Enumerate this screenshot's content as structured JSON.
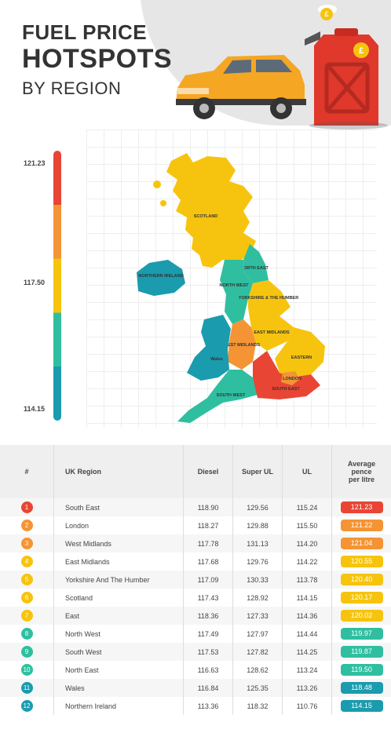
{
  "header": {
    "title_line1": "FUEL PRICE",
    "title_line2": "HOTSPOTS",
    "title_line3": "BY REGION"
  },
  "legend": {
    "max": "121.23",
    "mid": "117.50",
    "min": "114.15",
    "colors": [
      "#e84535",
      "#f49434",
      "#f6c40f",
      "#2fbfa0",
      "#1b9bae"
    ]
  },
  "map_labels": {
    "scotland": "SCOTLAND",
    "northern_ireland": "NORTHERN IRELAND",
    "north_east": "NORTH EAST",
    "north_west": "NORTH WEST",
    "yorkshire": "YORKSHIRE & THE HUMBER",
    "east_midlands": "EAST MIDLANDS",
    "west_midlands": "WEST MIDLANDS",
    "wales": "Wales",
    "eastern": "EASTERN",
    "london": "LONDON",
    "south_east": "SOUTH EAST",
    "south_west": "SOUTH WEST"
  },
  "hero_icons": {
    "car": "car-icon",
    "can": "fuel-can-icon",
    "coin": "pound-coin-icon",
    "pound_symbol": "£"
  },
  "table": {
    "headers": {
      "rank": "#",
      "region": "UK Region",
      "diesel": "Diesel",
      "super_ul": "Super UL",
      "ul": "UL",
      "average": "Average pence per litre"
    },
    "rows": [
      {
        "rank": "1",
        "region": "South East",
        "diesel": "118.90",
        "super_ul": "129.56",
        "ul": "115.24",
        "average": "121.23",
        "color": "#e84535"
      },
      {
        "rank": "2",
        "region": "London",
        "diesel": "118.27",
        "super_ul": "129.88",
        "ul": "115.50",
        "average": "121.22",
        "color": "#f49434"
      },
      {
        "rank": "3",
        "region": "West Midlands",
        "diesel": "117.78",
        "super_ul": "131.13",
        "ul": "114.20",
        "average": "121.04",
        "color": "#f49434"
      },
      {
        "rank": "4",
        "region": "East Midlands",
        "diesel": "117.68",
        "super_ul": "129.76",
        "ul": "114.22",
        "average": "120.55",
        "color": "#f6c40f"
      },
      {
        "rank": "5",
        "region": "Yorkshire And The Humber",
        "diesel": "117.09",
        "super_ul": "130.33",
        "ul": "113.78",
        "average": "120.40",
        "color": "#f6c40f"
      },
      {
        "rank": "6",
        "region": "Scotland",
        "diesel": "117.43",
        "super_ul": "128.92",
        "ul": "114.15",
        "average": "120.17",
        "color": "#f6c40f"
      },
      {
        "rank": "7",
        "region": "East",
        "diesel": "118.36",
        "super_ul": "127.33",
        "ul": "114.36",
        "average": "120.02",
        "color": "#f6c40f"
      },
      {
        "rank": "8",
        "region": "North West",
        "diesel": "117.49",
        "super_ul": "127.97",
        "ul": "114.44",
        "average": "119.97",
        "color": "#2fbfa0"
      },
      {
        "rank": "9",
        "region": "South West",
        "diesel": "117.53",
        "super_ul": "127.82",
        "ul": "114.25",
        "average": "119.87",
        "color": "#2fbfa0"
      },
      {
        "rank": "10",
        "region": "North East",
        "diesel": "116.63",
        "super_ul": "128.62",
        "ul": "113.24",
        "average": "119.50",
        "color": "#2fbfa0"
      },
      {
        "rank": "11",
        "region": "Wales",
        "diesel": "116.84",
        "super_ul": "125.35",
        "ul": "113.26",
        "average": "118.48",
        "color": "#1b9bae"
      },
      {
        "rank": "12",
        "region": "Northern Ireland",
        "diesel": "113.36",
        "super_ul": "118.32",
        "ul": "110.76",
        "average": "114.15",
        "color": "#1b9bae"
      }
    ]
  }
}
